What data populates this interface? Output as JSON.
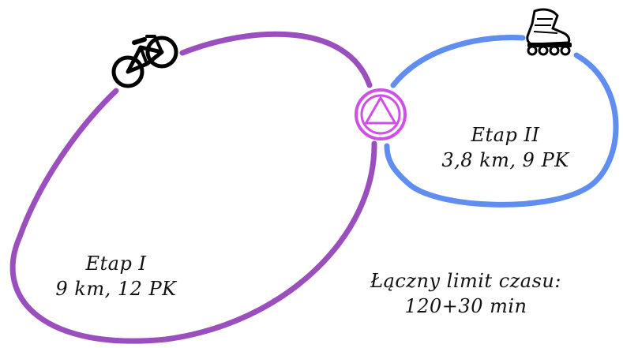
{
  "stages": [
    {
      "title": "Etap I",
      "details": "9 km, 12 PK"
    },
    {
      "title": "Etap II",
      "details": "3,8 km, 9 PK"
    }
  ],
  "total_limit": {
    "label": "Łączny limit czasu:",
    "value": "120+30 min"
  },
  "icons": {
    "stage1": "bicycle-icon",
    "stage2": "inline-skate-icon",
    "transition": "transition-zone-icon"
  },
  "colors": {
    "stage1_loop": "#9b4fbe",
    "stage2_loop": "#5f8ef0",
    "transition": "#d04fe6",
    "text": "#111111"
  }
}
